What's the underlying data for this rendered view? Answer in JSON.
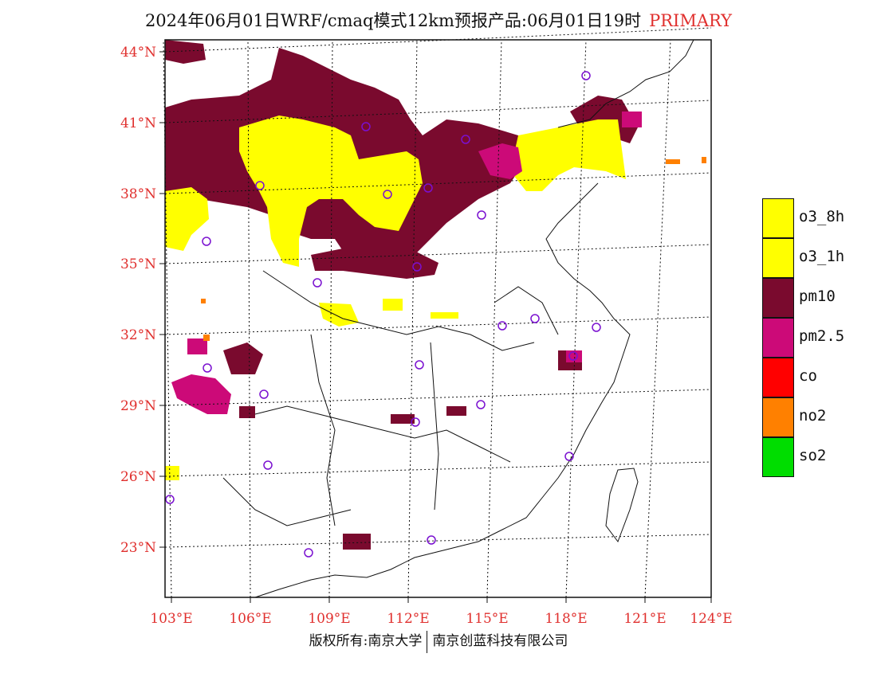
{
  "title": {
    "text": "2024年06月01日WRF/cmaq模式12km预报产品:06月01日19时",
    "tag": "PRIMARY"
  },
  "map": {
    "lat_ticks": [
      "44°N",
      "41°N",
      "38°N",
      "35°N",
      "32°N",
      "29°N",
      "26°N",
      "23°N"
    ],
    "lon_ticks": [
      "103°E",
      "106°E",
      "109°E",
      "112°E",
      "115°E",
      "118°E",
      "121°E",
      "124°E"
    ],
    "colors": {
      "o3_8h": "#ffff00",
      "o3_1h": "#ffff00",
      "pm10": "#7a0a2e",
      "pm25": "#cc0a78",
      "co": "#ff0000",
      "no2": "#ff8000",
      "so2": "#00dd00",
      "station": "#7a10d0",
      "tick": "#e0302e"
    }
  },
  "legend": [
    {
      "label": "o3_8h",
      "color": "#ffff00"
    },
    {
      "label": "o3_1h",
      "color": "#ffff00"
    },
    {
      "label": "pm10",
      "color": "#7a0a2e"
    },
    {
      "label": "pm2.5",
      "color": "#cc0a78"
    },
    {
      "label": "co",
      "color": "#ff0000"
    },
    {
      "label": "no2",
      "color": "#ff8000"
    },
    {
      "label": "so2",
      "color": "#00dd00"
    }
  ],
  "footer": {
    "left": "版权所有:南京大学",
    "right": "南京创蓝科技有限公司"
  }
}
